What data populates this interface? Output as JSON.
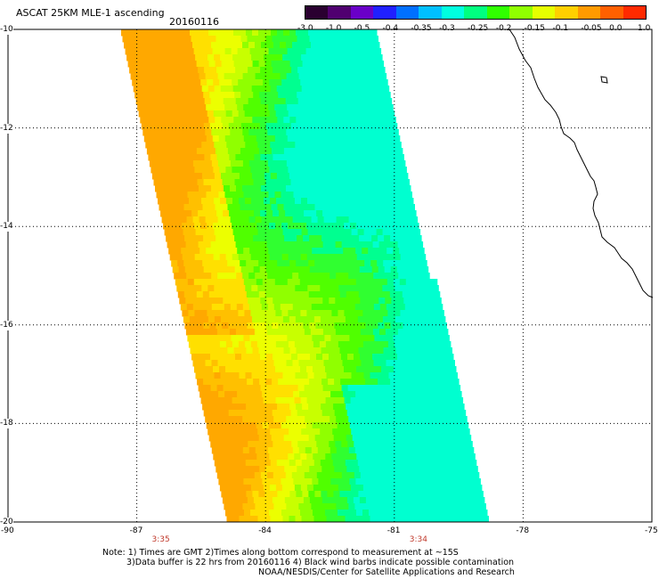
{
  "header": {
    "title": "ASCAT 25KM MLE-1 ascending",
    "date": "20160116"
  },
  "colorbar": {
    "colors": [
      "#2a0030",
      "#500070",
      "#6a00c8",
      "#2020ff",
      "#0070ff",
      "#00c0ff",
      "#00ffe0",
      "#00ff80",
      "#30ff00",
      "#90ff00",
      "#e6ff00",
      "#ffd000",
      "#ff9a00",
      "#ff6000",
      "#ff2a00"
    ],
    "labels": [
      "-3.0",
      "-1.0",
      "-0.5",
      "-0.4",
      "-0.35",
      "-0.3",
      "-0.25",
      "-0.2",
      "-0.15",
      "-0.1",
      "-0.05",
      "0.0",
      "1.0"
    ]
  },
  "map": {
    "lon_ticks": [
      "-90",
      "-87",
      "-84",
      "-81",
      "-78",
      "-75"
    ],
    "lat_ticks": [
      "-10",
      "-12",
      "-14",
      "-16",
      "-18",
      "-20"
    ],
    "times": [
      {
        "label": "3:35",
        "lon": -86.4
      },
      {
        "label": "3:34",
        "lon": -80.4
      }
    ]
  },
  "notes": {
    "line1": "Note: 1) Times are GMT 2)Times along bottom correspond to measurement at ~15S",
    "line2": "3)Data buffer is 22 hrs from 20160116 4) Black wind barbs indicate possible contamination",
    "line3": "NOAA/NESDIS/Center for Satellite Applications and Research"
  }
}
